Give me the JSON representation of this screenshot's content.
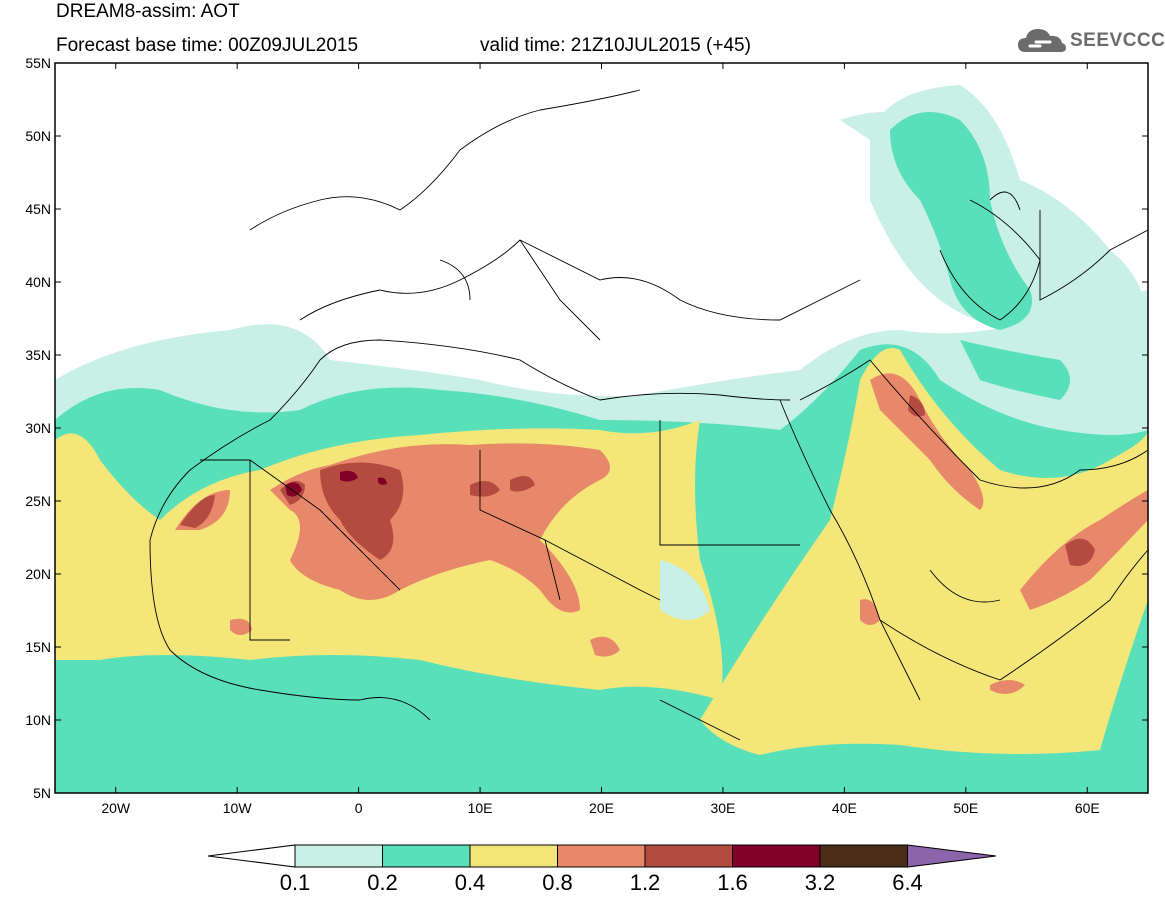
{
  "title": {
    "line1": "DREAM8-assim: AOT",
    "base_time": "Forecast base time: 00Z09JUL2015",
    "valid_time": "valid time: 21Z10JUL2015 (+45)"
  },
  "logo": {
    "text": "SEEVCCC",
    "icon": "cloud-icon"
  },
  "map": {
    "lon_range": [
      -25,
      65
    ],
    "lat_range": [
      5,
      55
    ],
    "lon_ticks": [
      {
        "value": -20,
        "label": "20W"
      },
      {
        "value": -10,
        "label": "10W"
      },
      {
        "value": 0,
        "label": "0"
      },
      {
        "value": 10,
        "label": "10E"
      },
      {
        "value": 20,
        "label": "20E"
      },
      {
        "value": 30,
        "label": "30E"
      },
      {
        "value": 40,
        "label": "40E"
      },
      {
        "value": 50,
        "label": "50E"
      },
      {
        "value": 60,
        "label": "60E"
      }
    ],
    "lat_ticks": [
      {
        "value": 5,
        "label": "5N"
      },
      {
        "value": 10,
        "label": "10N"
      },
      {
        "value": 15,
        "label": "15N"
      },
      {
        "value": 20,
        "label": "20N"
      },
      {
        "value": 25,
        "label": "25N"
      },
      {
        "value": 30,
        "label": "30N"
      },
      {
        "value": 35,
        "label": "35N"
      },
      {
        "value": 40,
        "label": "40N"
      },
      {
        "value": 45,
        "label": "45N"
      },
      {
        "value": 50,
        "label": "50N"
      },
      {
        "value": 55,
        "label": "55N"
      }
    ]
  },
  "legend": {
    "levels": [
      "0.1",
      "0.2",
      "0.4",
      "0.8",
      "1.2",
      "1.6",
      "3.2",
      "6.4"
    ],
    "colors": [
      "#ffffff",
      "#c8f0e6",
      "#5ae0b9",
      "#f5e67a",
      "#e8886a",
      "#b44b41",
      "#820028",
      "#4b2d19",
      "#8c64aa"
    ]
  }
}
